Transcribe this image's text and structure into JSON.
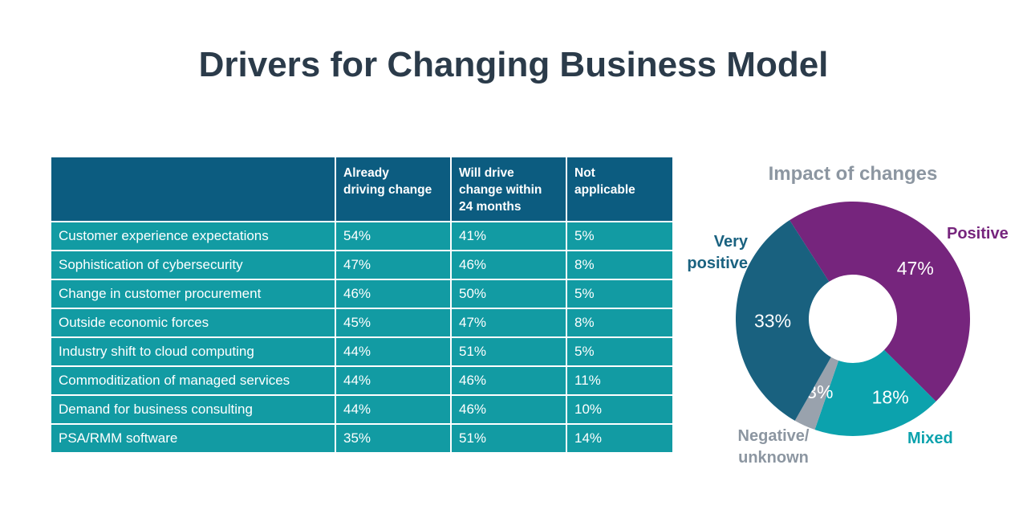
{
  "slide": {
    "title": "Drivers for Changing Business Model"
  },
  "colors": {
    "title_text": "#2B3B4A",
    "table_header_bg": "#0C5C80",
    "table_body_bg": "#129BA3",
    "table_border": "#FFFFFF",
    "table_text": "#FFFFFF",
    "chart_title_text": "#8C96A1",
    "slice_label_text": "#FFFFFF"
  },
  "chart_data": [
    {
      "type": "table",
      "columns": [
        "",
        "Already driving change",
        "Will drive change within 24 months",
        "Not applicable"
      ],
      "rows": [
        [
          "Customer experience expectations",
          "54%",
          "41%",
          "5%"
        ],
        [
          "Sophistication of cybersecurity",
          "47%",
          "46%",
          "8%"
        ],
        [
          "Change in customer procurement",
          "46%",
          "50%",
          "5%"
        ],
        [
          "Outside economic forces",
          "45%",
          "47%",
          "8%"
        ],
        [
          "Industry shift to cloud computing",
          "44%",
          "51%",
          "5%"
        ],
        [
          "Commoditization of managed services",
          "44%",
          "46%",
          "11%"
        ],
        [
          "Demand for business consulting",
          "44%",
          "46%",
          "10%"
        ],
        [
          "PSA/RMM software",
          "35%",
          "51%",
          "14%"
        ]
      ]
    },
    {
      "type": "pie",
      "subtype": "donut",
      "title": "Impact of changes",
      "start_angle_deg": 122.7,
      "direction": "clockwise",
      "legend_position": "around",
      "slices": [
        {
          "label": "Positive",
          "value": 47,
          "display": "47%",
          "color": "#76257D",
          "label_color": "#76257D"
        },
        {
          "label": "Mixed",
          "value": 18,
          "display": "18%",
          "color": "#0CA2AD",
          "label_color": "#0CA2AD"
        },
        {
          "label": "Negative/ unknown",
          "value": 3,
          "display": "3%",
          "color": "#99A2AD",
          "label_color": "#8C96A1"
        },
        {
          "label": "Very positive",
          "value": 33,
          "display": "33%",
          "color": "#19617F",
          "label_color": "#1A6280"
        }
      ]
    }
  ]
}
